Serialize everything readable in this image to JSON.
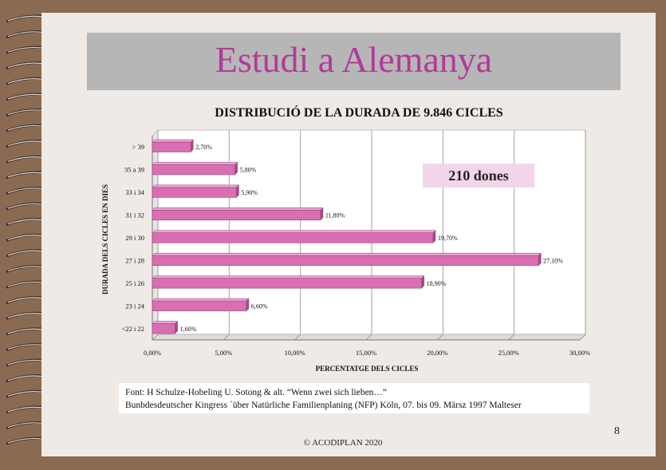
{
  "slide": {
    "title": "Estudi a Alemanya",
    "badge": "210 dones",
    "source_line1": "Font: H Schulze-Hobeling  U. Sotong  & alt. “Wenn zwei sich lieben…”",
    "source_line2": "Bunbdesdeutscher Kingress ´über Natürliche Familienplaning (NFP) Köln, 07. bis 09. Märsz 1997 Malteser",
    "page_number": "8",
    "copyright": "© ACODIPLAN 2020"
  },
  "chart_data": {
    "type": "bar",
    "orientation": "horizontal",
    "title": "DISTRIBUCIÓ DE LA DURADA DE 9.846 CICLES",
    "xlabel": "PERCENTATGE  DELS CICLES",
    "ylabel": "DURADA DELS CICLES EN DIES",
    "categories": [
      "> 39",
      "35 a 39",
      "33 i 34",
      "31 i 32",
      "29 i 30",
      "27 i 28",
      "25 i 26",
      "23 i 24",
      "<22 i 22"
    ],
    "values": [
      2.7,
      5.8,
      5.9,
      11.8,
      19.7,
      27.1,
      18.9,
      6.6,
      1.6
    ],
    "value_labels": [
      "2,70%",
      "5,80%",
      "5,90%",
      "11,80%",
      "19,70%",
      "27,10%",
      "18,90%",
      "6,60%",
      "1,60%"
    ],
    "xlim": [
      0,
      30
    ],
    "xticks": [
      0,
      5,
      10,
      15,
      20,
      25,
      30
    ],
    "xtick_labels": [
      "0,00%",
      "5,00%",
      "10,00%",
      "15,00%",
      "20,00%",
      "25,00%",
      "30,00%"
    ],
    "grid": true,
    "bar_color": "#d96fb0",
    "bar_edge_color": "#9c3f7c"
  }
}
